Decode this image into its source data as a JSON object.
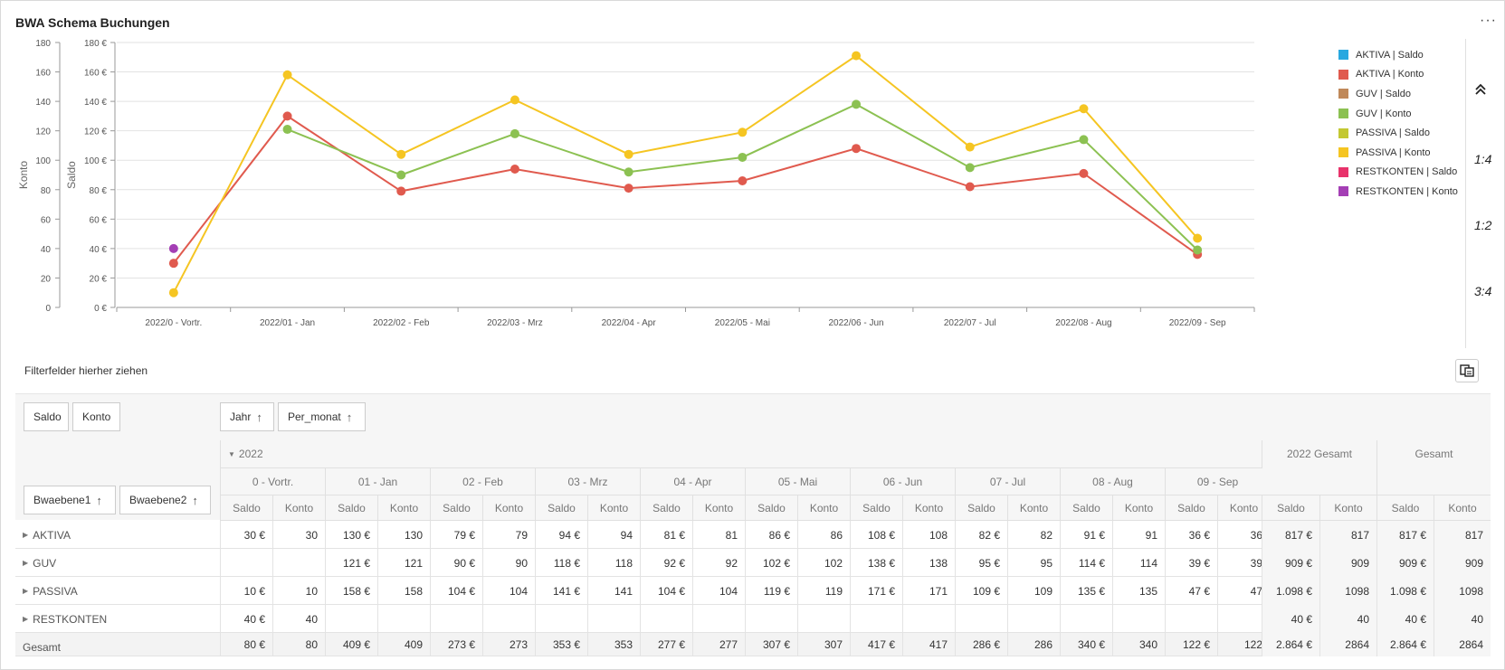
{
  "window": {
    "title": "BWA Schema Buchungen",
    "more_icon": "ellipsis-icon"
  },
  "chart_data": {
    "type": "line",
    "categories": [
      "2022/0 - Vortr.",
      "2022/01 - Jan",
      "2022/02 - Feb",
      "2022/03 - Mrz",
      "2022/04 - Apr",
      "2022/05 - Mai",
      "2022/06 - Jun",
      "2022/07 - Jul",
      "2022/08 - Aug",
      "2022/09 - Sep"
    ],
    "y_left_label": "Konto",
    "y_right_label": "Saldo",
    "y_left_ticks": [
      "0",
      "20",
      "40",
      "60",
      "80",
      "100",
      "120",
      "140",
      "160",
      "180"
    ],
    "y_right_ticks": [
      "0 €",
      "20 €",
      "40 €",
      "60 €",
      "80 €",
      "100 €",
      "120 €",
      "140 €",
      "160 €",
      "180 €"
    ],
    "ylim": [
      0,
      180
    ],
    "grid": true,
    "legend_position": "right",
    "series": [
      {
        "name": "AKTIVA | Konto",
        "color": "#e05a4e",
        "values": [
          30,
          130,
          79,
          94,
          81,
          86,
          108,
          82,
          91,
          36
        ]
      },
      {
        "name": "GUV | Konto",
        "color": "#8cc152",
        "values": [
          null,
          121,
          90,
          118,
          92,
          102,
          138,
          95,
          114,
          39
        ]
      },
      {
        "name": "PASSIVA | Konto",
        "color": "#f5c522",
        "values": [
          10,
          158,
          104,
          141,
          104,
          119,
          171,
          109,
          135,
          47
        ]
      },
      {
        "name": "RESTKONTEN | Konto",
        "color": "#a43fb5",
        "values": [
          40,
          null,
          null,
          null,
          null,
          null,
          null,
          null,
          null,
          null
        ]
      }
    ]
  },
  "legend": [
    {
      "label": "AKTIVA | Saldo",
      "color": "#29a8e0"
    },
    {
      "label": "AKTIVA | Konto",
      "color": "#e05a4e"
    },
    {
      "label": "GUV | Saldo",
      "color": "#c0895a"
    },
    {
      "label": "GUV | Konto",
      "color": "#8cc152"
    },
    {
      "label": "PASSIVA | Saldo",
      "color": "#c3c832"
    },
    {
      "label": "PASSIVA | Konto",
      "color": "#f5c522"
    },
    {
      "label": "RESTKONTEN | Saldo",
      "color": "#e8336b"
    },
    {
      "label": "RESTKONTEN | Konto",
      "color": "#a43fb5"
    }
  ],
  "side": {
    "btn1": "1:4",
    "btn2": "1:2",
    "btn3": "3:4"
  },
  "filter_label": "Filterfelder hierher ziehen",
  "pivot": {
    "data_chips": [
      "Saldo",
      "Konto"
    ],
    "column_chips": [
      "Jahr",
      "Per_monat"
    ],
    "row_chips": [
      "Bwaebene1",
      "Bwaebene2"
    ],
    "sort_arrow": "↑",
    "year": "2022",
    "months": [
      "0 - Vortr.",
      "01 - Jan",
      "02 - Feb",
      "03 - Mrz",
      "04 - Apr",
      "05 - Mai",
      "06 - Jun",
      "07 - Jul",
      "08 - Aug",
      "09 - Sep"
    ],
    "year_total": "2022 Gesamt",
    "grand_total": "Gesamt",
    "measures": [
      "Saldo",
      "Konto"
    ],
    "rows": [
      {
        "label": "AKTIVA",
        "expandable": true,
        "cells": [
          "30 €",
          "30",
          "130 €",
          "130",
          "79 €",
          "79",
          "94 €",
          "94",
          "81 €",
          "81",
          "86 €",
          "86",
          "108 €",
          "108",
          "82 €",
          "82",
          "91 €",
          "91",
          "36 €",
          "36",
          "817 €",
          "817",
          "817 €",
          "817"
        ]
      },
      {
        "label": "GUV",
        "expandable": true,
        "cells": [
          "",
          "",
          "121 €",
          "121",
          "90 €",
          "90",
          "118 €",
          "118",
          "92 €",
          "92",
          "102 €",
          "102",
          "138 €",
          "138",
          "95 €",
          "95",
          "114 €",
          "114",
          "39 €",
          "39",
          "909 €",
          "909",
          "909 €",
          "909"
        ]
      },
      {
        "label": "PASSIVA",
        "expandable": true,
        "cells": [
          "10 €",
          "10",
          "158 €",
          "158",
          "104 €",
          "104",
          "141 €",
          "141",
          "104 €",
          "104",
          "119 €",
          "119",
          "171 €",
          "171",
          "109 €",
          "109",
          "135 €",
          "135",
          "47 €",
          "47",
          "1.098 €",
          "1098",
          "1.098 €",
          "1098"
        ]
      },
      {
        "label": "RESTKONTEN",
        "expandable": true,
        "cells": [
          "40 €",
          "40",
          "",
          "",
          "",
          "",
          "",
          "",
          "",
          "",
          "",
          "",
          "",
          "",
          "",
          "",
          "",
          "",
          "",
          "",
          "40 €",
          "40",
          "40 €",
          "40"
        ]
      },
      {
        "label": "Gesamt",
        "expandable": false,
        "cells": [
          "80 €",
          "80",
          "409 €",
          "409",
          "273 €",
          "273",
          "353 €",
          "353",
          "277 €",
          "277",
          "307 €",
          "307",
          "417 €",
          "417",
          "286 €",
          "286",
          "340 €",
          "340",
          "122 €",
          "122",
          "2.864 €",
          "2864",
          "2.864 €",
          "2864"
        ]
      }
    ]
  }
}
